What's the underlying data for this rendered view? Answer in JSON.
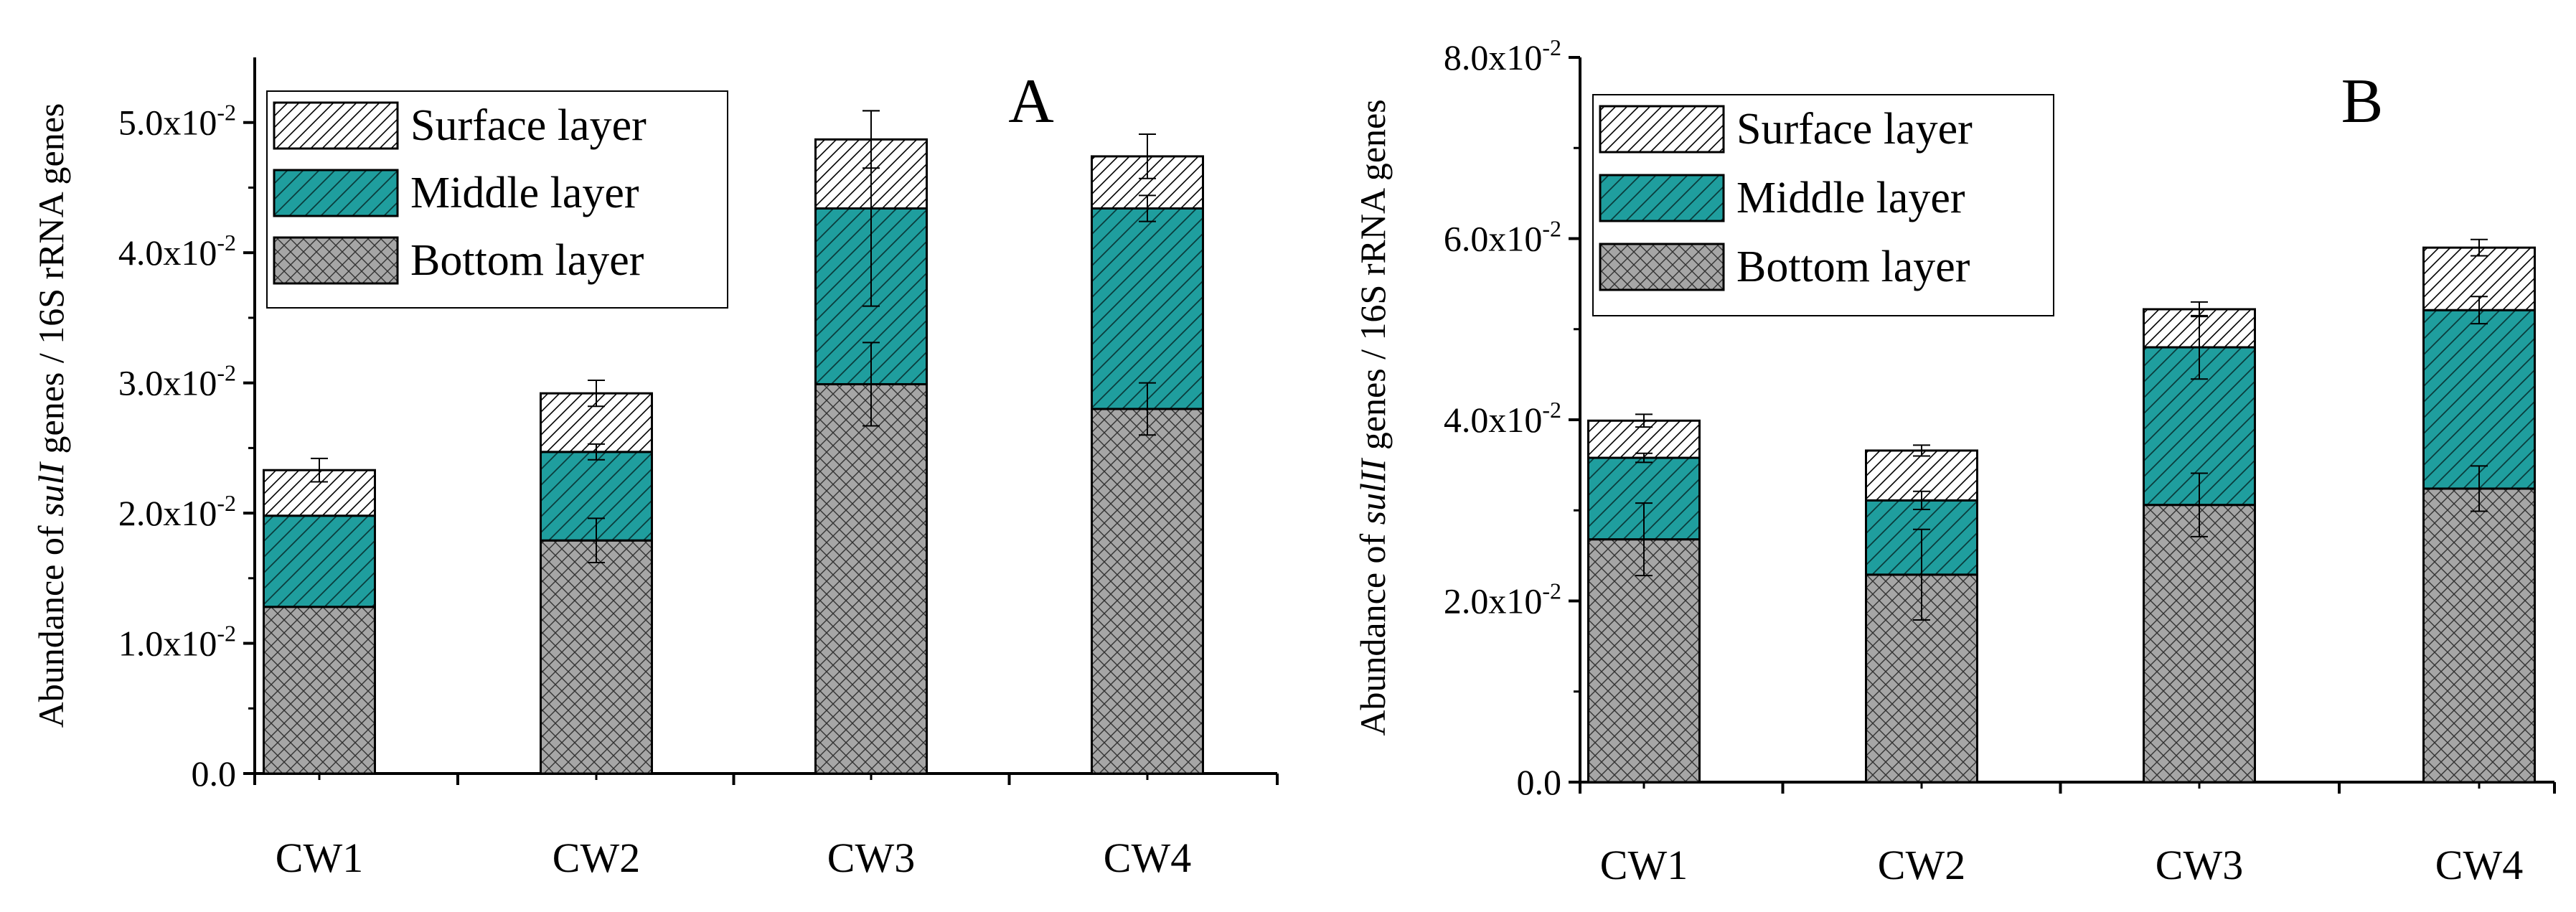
{
  "chart_data": [
    {
      "type": "bar",
      "stacked": true,
      "panel_label": "A",
      "title": "",
      "ylabel_parts": [
        "Abundance of ",
        "sulI",
        " genes / 16S rRNA genes"
      ],
      "xlabel": "",
      "categories": [
        "CW1",
        "CW2",
        "CW3",
        "CW4"
      ],
      "ylim": [
        0,
        0.055
      ],
      "yticks": [
        0,
        0.01,
        0.02,
        0.03,
        0.04,
        0.05
      ],
      "ytick_labels": [
        "0.0",
        "1.0x10",
        "2.0x10",
        "3.0x10",
        "4.0x10",
        "5.0x10"
      ],
      "ytick_exponent": "-2",
      "legend_position": "top-left",
      "series": [
        {
          "name": "Bottom layer",
          "values": [
            0.0128,
            0.0179,
            0.0299,
            0.028
          ],
          "errors": [
            0.0,
            0.0017,
            0.0032,
            0.002
          ],
          "pattern": "crosshatch",
          "color": "#a6a6a6"
        },
        {
          "name": "Middle layer",
          "values": [
            0.007,
            0.0068,
            0.0135,
            0.0154
          ],
          "errors": [
            0.0,
            0.0006,
            0.0075,
            0.001
          ],
          "pattern": "diagonal",
          "color": "#1f9e9e"
        },
        {
          "name": "Surface layer",
          "values": [
            0.0035,
            0.0045,
            0.0053,
            0.004
          ],
          "errors": [
            0.0009,
            0.001,
            0.0022,
            0.0017
          ],
          "pattern": "diagonal",
          "color": "#ffffff"
        }
      ]
    },
    {
      "type": "bar",
      "stacked": true,
      "panel_label": "B",
      "title": "",
      "ylabel_parts": [
        "Abundance of ",
        "sulII",
        " genes / 16S rRNA genes"
      ],
      "xlabel": "",
      "categories": [
        "CW1",
        "CW2",
        "CW3",
        "CW4"
      ],
      "ylim": [
        0,
        0.08
      ],
      "yticks": [
        0,
        0.02,
        0.04,
        0.06,
        0.08
      ],
      "ytick_labels": [
        "0.0",
        "2.0x10",
        "4.0x10",
        "6.0x10",
        "8.0x10"
      ],
      "ytick_exponent": "-2",
      "legend_position": "top-left",
      "series": [
        {
          "name": "Bottom layer",
          "values": [
            0.0268,
            0.0229,
            0.0306,
            0.0324
          ],
          "errors": [
            0.004,
            0.005,
            0.0035,
            0.0025
          ],
          "pattern": "crosshatch",
          "color": "#a6a6a6"
        },
        {
          "name": "Middle layer",
          "values": [
            0.009,
            0.0082,
            0.0174,
            0.0197
          ],
          "errors": [
            0.0005,
            0.001,
            0.0035,
            0.0015
          ],
          "pattern": "diagonal",
          "color": "#1f9e9e"
        },
        {
          "name": "Surface layer",
          "values": [
            0.0041,
            0.0055,
            0.0042,
            0.0069
          ],
          "errors": [
            0.0007,
            0.0006,
            0.0008,
            0.0009
          ],
          "pattern": "diagonal",
          "color": "#ffffff"
        }
      ]
    }
  ]
}
